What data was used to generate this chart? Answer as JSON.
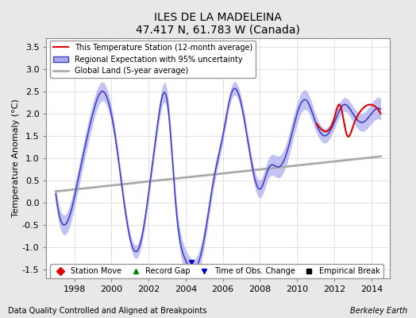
{
  "title": "ILES DE LA MADELEINA",
  "subtitle": "47.417 N, 61.783 W (Canada)",
  "ylabel": "Temperature Anomaly (°C)",
  "xlabel_bottom": "Data Quality Controlled and Aligned at Breakpoints",
  "xlabel_right": "Berkeley Earth",
  "ylim": [
    -1.7,
    3.7
  ],
  "xlim": [
    1996.5,
    2015.0
  ],
  "yticks": [
    -1.5,
    -1.0,
    -0.5,
    0.0,
    0.5,
    1.0,
    1.5,
    2.0,
    2.5,
    3.0,
    3.5
  ],
  "xticks": [
    1998,
    2000,
    2002,
    2004,
    2006,
    2008,
    2010,
    2012,
    2014
  ],
  "bg_color": "#e8e8e8",
  "plot_bg_color": "#ffffff",
  "regional_color": "#4040cc",
  "regional_fill_color": "#aaaaee",
  "station_color": "#dd0000",
  "global_color": "#aaaaaa",
  "obs_change_marker_color": "#0000cc",
  "legend_items": [
    "This Temperature Station (12-month average)",
    "Regional Expectation with 95% uncertainty",
    "Global Land (5-year average)"
  ],
  "bottom_legend": [
    {
      "label": "Station Move",
      "color": "#dd0000",
      "marker": "D"
    },
    {
      "label": "Record Gap",
      "color": "#008800",
      "marker": "^"
    },
    {
      "label": "Time of Obs. Change",
      "color": "#0000cc",
      "marker": "v"
    },
    {
      "label": "Empirical Break",
      "color": "#000000",
      "marker": "s"
    }
  ],
  "obs_change_x": 2004.3,
  "obs_change_y": -1.35
}
